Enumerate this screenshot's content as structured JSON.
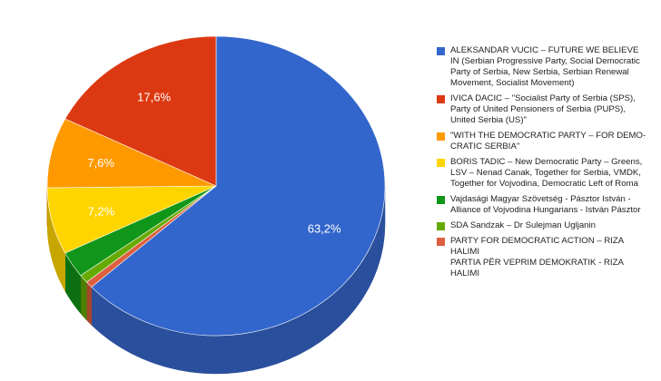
{
  "chart_data": {
    "type": "pie",
    "three_d": true,
    "slice_order": "clockwise from top",
    "legend_position": "right",
    "slices": [
      {
        "label": "ALEKSANDAR VUCIC – FUTURE WE BELIEVE IN (Serbian Progressive Party, Social Democratic Party of Serbia, New Serbia, Serbian Renewal Movement, Socialist Movement)",
        "value": 63.2,
        "value_label": "63,2%",
        "color": "#3366CC",
        "side_color": "#2A4F9C"
      },
      {
        "label": "PARTY FOR DEMOCRATIC ACTION – RIZA HALIMI\nPARTIA PËR VEPRIM DEMOKRATIK - RIZA HALIMI",
        "value": 0.7,
        "value_label": "",
        "color": "#DD5F3F",
        "side_color": "#A8442C"
      },
      {
        "label": "SDA Sandzak – Dr Sulejman Ugljanin",
        "value": 0.9,
        "value_label": "",
        "color": "#66AA00",
        "side_color": "#4C8000"
      },
      {
        "label": "Vajdasági Magyar Szövetség - Pásztor István - Alliance of Vojvodina Hungarians - István Pásztor",
        "value": 2.8,
        "value_label": "",
        "color": "#109618",
        "side_color": "#0C7012"
      },
      {
        "label": "BORIS TADIC – New Democratic Party – Greens, LSV – Nenad Canak, Together for Serbia, VMDK, Together for Vojvodina, Democratic Left of Roma",
        "value": 7.2,
        "value_label": "7,2%",
        "color": "#FFD500",
        "side_color": "#C8A600"
      },
      {
        "label": "\"WITH THE DEMOCRATIC PARTY – FOR DEMO- CRATIC SERBIA\"",
        "value": 7.6,
        "value_label": "7,6%",
        "color": "#FF9900",
        "side_color": "#C87800"
      },
      {
        "label": "IVICA DACIC – \"Socialist Party of Serbia (SPS), Party of United Pensioners of Serbia (PUPS), United Serbia (US)\"",
        "value": 17.6,
        "value_label": "17,6%",
        "color": "#DC3912",
        "side_color": "#A82A0C"
      }
    ]
  },
  "legend": [
    {
      "text": "ALEKSANDAR VUCIC – FUTURE WE BELIEVE\nIN (Serbian Progressive Party, Social Democratic\nParty of Serbia, New Serbia, Serbian Renewal\nMovement, Socialist Movement)",
      "color": "#3366CC"
    },
    {
      "text": "IVICA DACIC – \"Socialist Party of Serbia (SPS),\nParty of United Pensioners of Serbia (PUPS),\nUnited Serbia (US)\"",
      "color": "#DC3912"
    },
    {
      "text": "\"WITH THE DEMOCRATIC PARTY – FOR DEMO-\nCRATIC SERBIA\"",
      "color": "#FF9900"
    },
    {
      "text": "BORIS TADIC – New Democratic Party – Greens,\nLSV – Nenad Canak, Together for Serbia, VMDK,\nTogether for Vojvodina, Democratic Left of Roma",
      "color": "#FFD500"
    },
    {
      "text": "Vajdasági Magyar Szövetség - Pásztor István -\nAlliance of Vojvodina Hungarians - István Pásztor",
      "color": "#109618"
    },
    {
      "text": "SDA Sandzak – Dr Sulejman Ugljanin",
      "color": "#66AA00"
    },
    {
      "text": "PARTY FOR DEMOCRATIC ACTION – RIZA\nHALIMI\nPARTIA PËR VEPRIM DEMOKRATIK - RIZA\nHALIMI",
      "color": "#DD5F3F"
    }
  ]
}
